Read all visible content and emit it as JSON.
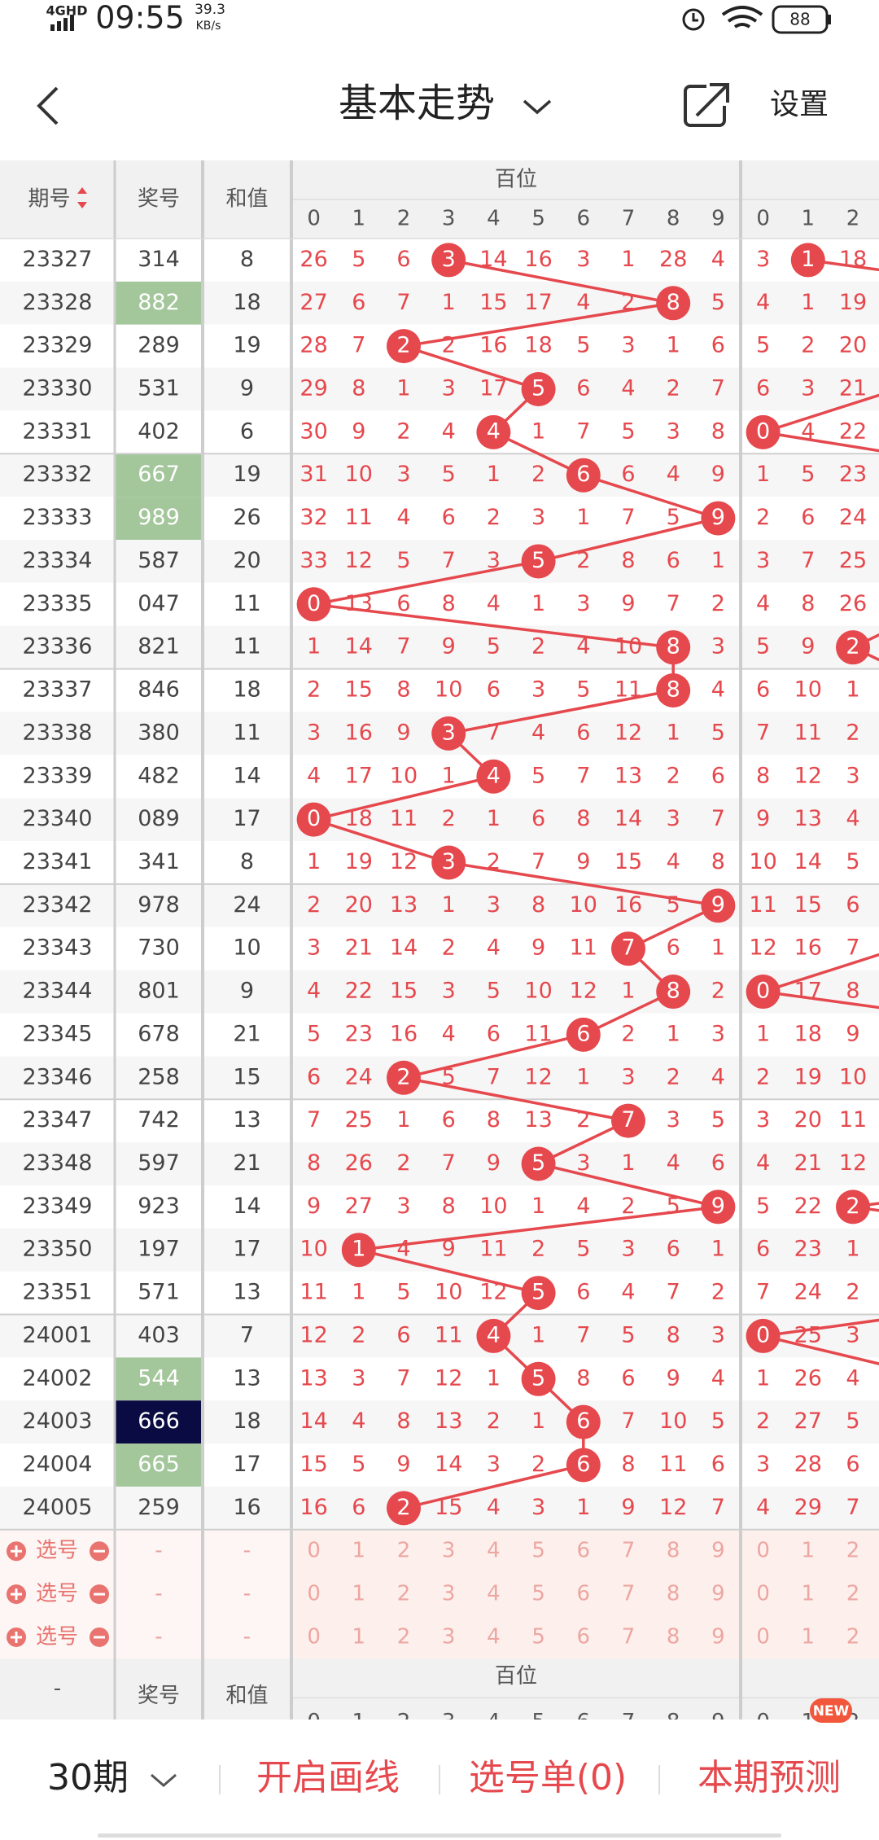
{
  "status_bar": {
    "network": "4GHD",
    "time": "09:55",
    "speed": "39.3",
    "speed_unit": "KB/s",
    "battery": "88"
  },
  "header": {
    "title": "基本走势",
    "settings": "设置"
  },
  "table": {
    "columns": {
      "period": "期号",
      "number": "奖号",
      "sum": "和值"
    },
    "group": "百位",
    "digits": [
      0,
      1,
      2,
      3,
      4,
      5,
      6,
      7,
      8,
      9
    ],
    "tens_digits": [
      0,
      1,
      2
    ],
    "rows": [
      {
        "period": "23327",
        "number": "314",
        "sum": 8,
        "hundreds": [
          26,
          5,
          6,
          3,
          14,
          16,
          3,
          1,
          28,
          4
        ],
        "tens": [
          3,
          1,
          18
        ]
      },
      {
        "period": "23328",
        "number": "882",
        "sum": 18,
        "hundreds": [
          27,
          6,
          7,
          1,
          15,
          17,
          4,
          2,
          8,
          5
        ],
        "tens": [
          4,
          1,
          19
        ]
      },
      {
        "period": "23329",
        "number": "289",
        "sum": 19,
        "hundreds": [
          28,
          7,
          2,
          2,
          16,
          18,
          5,
          3,
          1,
          6
        ],
        "tens": [
          5,
          2,
          20
        ]
      },
      {
        "period": "23330",
        "number": "531",
        "sum": 9,
        "hundreds": [
          29,
          8,
          1,
          3,
          17,
          5,
          6,
          4,
          2,
          7
        ],
        "tens": [
          6,
          3,
          21
        ]
      },
      {
        "period": "23331",
        "number": "402",
        "sum": 6,
        "hundreds": [
          30,
          9,
          2,
          4,
          4,
          1,
          7,
          5,
          3,
          8
        ],
        "tens": [
          0,
          4,
          22
        ]
      },
      {
        "period": "23332",
        "number": "667",
        "sum": 19,
        "hundreds": [
          31,
          10,
          3,
          5,
          1,
          2,
          6,
          6,
          4,
          9
        ],
        "tens": [
          1,
          5,
          23
        ]
      },
      {
        "period": "23333",
        "number": "989",
        "sum": 26,
        "hundreds": [
          32,
          11,
          4,
          6,
          2,
          3,
          1,
          7,
          5,
          9
        ],
        "tens": [
          2,
          6,
          24
        ]
      },
      {
        "period": "23334",
        "number": "587",
        "sum": 20,
        "hundreds": [
          33,
          12,
          5,
          7,
          3,
          5,
          2,
          8,
          6,
          1
        ],
        "tens": [
          3,
          7,
          25
        ]
      },
      {
        "period": "23335",
        "number": "047",
        "sum": 11,
        "hundreds": [
          0,
          13,
          6,
          8,
          4,
          1,
          3,
          9,
          7,
          2
        ],
        "tens": [
          4,
          8,
          26
        ]
      },
      {
        "period": "23336",
        "number": "821",
        "sum": 11,
        "hundreds": [
          1,
          14,
          7,
          9,
          5,
          2,
          4,
          10,
          8,
          3
        ],
        "tens": [
          5,
          9,
          2
        ]
      },
      {
        "period": "23337",
        "number": "846",
        "sum": 18,
        "hundreds": [
          2,
          15,
          8,
          10,
          6,
          3,
          5,
          11,
          8,
          4
        ],
        "tens": [
          6,
          10,
          1
        ]
      },
      {
        "period": "23338",
        "number": "380",
        "sum": 11,
        "hundreds": [
          3,
          16,
          9,
          3,
          7,
          4,
          6,
          12,
          1,
          5
        ],
        "tens": [
          7,
          11,
          2
        ]
      },
      {
        "period": "23339",
        "number": "482",
        "sum": 14,
        "hundreds": [
          4,
          17,
          10,
          1,
          4,
          5,
          7,
          13,
          2,
          6
        ],
        "tens": [
          8,
          12,
          3
        ]
      },
      {
        "period": "23340",
        "number": "089",
        "sum": 17,
        "hundreds": [
          0,
          18,
          11,
          2,
          1,
          6,
          8,
          14,
          3,
          7
        ],
        "tens": [
          9,
          13,
          4
        ]
      },
      {
        "period": "23341",
        "number": "341",
        "sum": 8,
        "hundreds": [
          1,
          19,
          12,
          3,
          2,
          7,
          9,
          15,
          4,
          8
        ],
        "tens": [
          10,
          14,
          5
        ]
      },
      {
        "period": "23342",
        "number": "978",
        "sum": 24,
        "hundreds": [
          2,
          20,
          13,
          1,
          3,
          8,
          10,
          16,
          5,
          9
        ],
        "tens": [
          11,
          15,
          6
        ]
      },
      {
        "period": "23343",
        "number": "730",
        "sum": 10,
        "hundreds": [
          3,
          21,
          14,
          2,
          4,
          9,
          11,
          7,
          6,
          1
        ],
        "tens": [
          12,
          16,
          7
        ]
      },
      {
        "period": "23344",
        "number": "801",
        "sum": 9,
        "hundreds": [
          4,
          22,
          15,
          3,
          5,
          10,
          12,
          1,
          8,
          2
        ],
        "tens": [
          0,
          17,
          8
        ]
      },
      {
        "period": "23345",
        "number": "678",
        "sum": 21,
        "hundreds": [
          5,
          23,
          16,
          4,
          6,
          11,
          6,
          2,
          1,
          3
        ],
        "tens": [
          1,
          18,
          9
        ]
      },
      {
        "period": "23346",
        "number": "258",
        "sum": 15,
        "hundreds": [
          6,
          24,
          2,
          5,
          7,
          12,
          1,
          3,
          2,
          4
        ],
        "tens": [
          2,
          19,
          10
        ]
      },
      {
        "period": "23347",
        "number": "742",
        "sum": 13,
        "hundreds": [
          7,
          25,
          1,
          6,
          8,
          13,
          2,
          7,
          3,
          5
        ],
        "tens": [
          3,
          20,
          11
        ]
      },
      {
        "period": "23348",
        "number": "597",
        "sum": 21,
        "hundreds": [
          8,
          26,
          2,
          7,
          9,
          5,
          3,
          1,
          4,
          6
        ],
        "tens": [
          4,
          21,
          12
        ]
      },
      {
        "period": "23349",
        "number": "923",
        "sum": 14,
        "hundreds": [
          9,
          27,
          3,
          8,
          10,
          1,
          4,
          2,
          5,
          9
        ],
        "tens": [
          5,
          22,
          2
        ]
      },
      {
        "period": "23350",
        "number": "197",
        "sum": 17,
        "hundreds": [
          10,
          1,
          4,
          9,
          11,
          2,
          5,
          3,
          6,
          1
        ],
        "tens": [
          6,
          23,
          1
        ]
      },
      {
        "period": "23351",
        "number": "571",
        "sum": 13,
        "hundreds": [
          11,
          1,
          5,
          10,
          12,
          5,
          6,
          4,
          7,
          2
        ],
        "tens": [
          7,
          24,
          2
        ]
      },
      {
        "period": "24001",
        "number": "403",
        "sum": 7,
        "hundreds": [
          12,
          2,
          6,
          11,
          4,
          1,
          7,
          5,
          8,
          3
        ],
        "tens": [
          0,
          25,
          3
        ]
      },
      {
        "period": "24002",
        "number": "544",
        "sum": 13,
        "hundreds": [
          13,
          3,
          7,
          12,
          1,
          5,
          8,
          6,
          9,
          4
        ],
        "tens": [
          1,
          26,
          4
        ]
      },
      {
        "period": "24003",
        "number": "666",
        "sum": 18,
        "hundreds": [
          14,
          4,
          8,
          13,
          2,
          1,
          6,
          7,
          10,
          5
        ],
        "tens": [
          2,
          27,
          5
        ]
      },
      {
        "period": "24004",
        "number": "665",
        "sum": 17,
        "hundreds": [
          15,
          5,
          9,
          14,
          3,
          2,
          6,
          8,
          11,
          6
        ],
        "tens": [
          3,
          28,
          6
        ]
      },
      {
        "period": "24005",
        "number": "259",
        "sum": 16,
        "hundreds": [
          16,
          6,
          2,
          15,
          4,
          3,
          1,
          9,
          12,
          7
        ],
        "tens": [
          4,
          29,
          7
        ]
      }
    ],
    "pick_rows": [
      {
        "label": "选号",
        "number": "-",
        "sum": "-"
      },
      {
        "label": "选号",
        "number": "-",
        "sum": "-"
      },
      {
        "label": "选号",
        "number": "-",
        "sum": "-"
      }
    ],
    "footer": {
      "period": "-",
      "number": "奖号",
      "sum": "和值",
      "group": "百位"
    }
  },
  "bottom_bar": {
    "periods": "30期",
    "draw": "开启画线",
    "picks": "选号单(0)",
    "predict": "本期预测",
    "badge": "NEW"
  }
}
